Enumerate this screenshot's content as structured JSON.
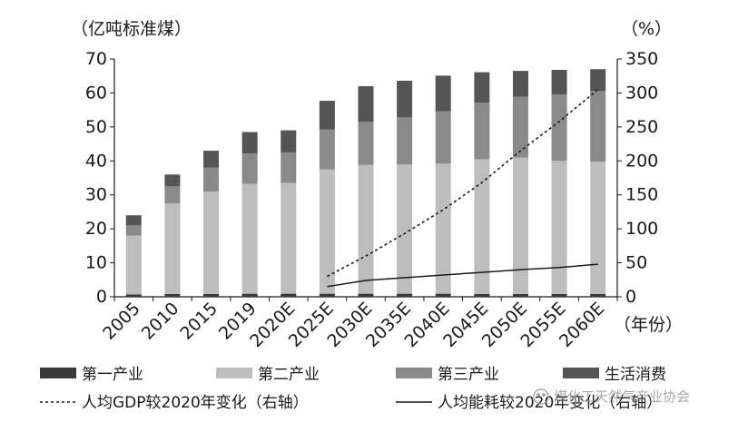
{
  "chart_data": {
    "type": "bar",
    "left_unit": "（亿吨标准煤）",
    "right_unit": "（%）",
    "x_unit": "（年份）",
    "categories": [
      "2005",
      "2010",
      "2015",
      "2019",
      "2020E",
      "2025E",
      "2030E",
      "2035E",
      "2040E",
      "2045E",
      "2050E",
      "2055E",
      "2060E"
    ],
    "ylim_left": [
      0,
      70
    ],
    "yticks_left": [
      "0",
      "10",
      "20",
      "30",
      "40",
      "50",
      "60",
      "70"
    ],
    "ylim_right": [
      0,
      350
    ],
    "yticks_right": [
      "0",
      "50",
      "100",
      "150",
      "200",
      "250",
      "300",
      "350"
    ],
    "stacked_series": [
      {
        "name": "第一产业",
        "color": "#3a3a3a",
        "values": [
          0.7,
          0.8,
          0.8,
          0.9,
          0.9,
          0.9,
          0.9,
          0.9,
          0.9,
          0.8,
          0.8,
          0.8,
          0.8
        ]
      },
      {
        "name": "第二产业",
        "color": "#bdbdbd",
        "values": [
          17.3,
          26.7,
          30.2,
          32.3,
          32.6,
          36.6,
          37.9,
          38.1,
          38.3,
          39.7,
          40.2,
          39.2,
          39.0
        ]
      },
      {
        "name": "第三产业",
        "color": "#8a8a8a",
        "values": [
          3.0,
          5.0,
          7.0,
          9.0,
          9.0,
          11.8,
          12.7,
          13.8,
          15.4,
          16.6,
          17.9,
          19.6,
          20.8
        ]
      },
      {
        "name": "生活消费",
        "color": "#555555",
        "values": [
          3.0,
          3.5,
          5.0,
          6.3,
          6.5,
          8.4,
          10.5,
          10.8,
          10.5,
          9.0,
          7.6,
          7.2,
          6.4
        ]
      }
    ],
    "line_series": [
      {
        "name": "人均GDP较2020年变化（右轴）",
        "style": "dotted",
        "values": [
          null,
          null,
          null,
          null,
          null,
          30,
          60,
          93,
          128,
          168,
          215,
          258,
          305
        ]
      },
      {
        "name": "人均能耗较2020年变化（右轴）",
        "style": "solid",
        "values": [
          null,
          null,
          null,
          null,
          null,
          15,
          24,
          28,
          32,
          36,
          40,
          43,
          48
        ]
      }
    ]
  },
  "legend": {
    "row1": [
      "第一产业",
      "第二产业",
      "第三产业",
      "生活消费"
    ],
    "row2": [
      "人均GDP较2020年变化（右轴）",
      "人均能耗较2020年变化（右轴）"
    ]
  },
  "watermark": "煤化工天然气产业协会"
}
